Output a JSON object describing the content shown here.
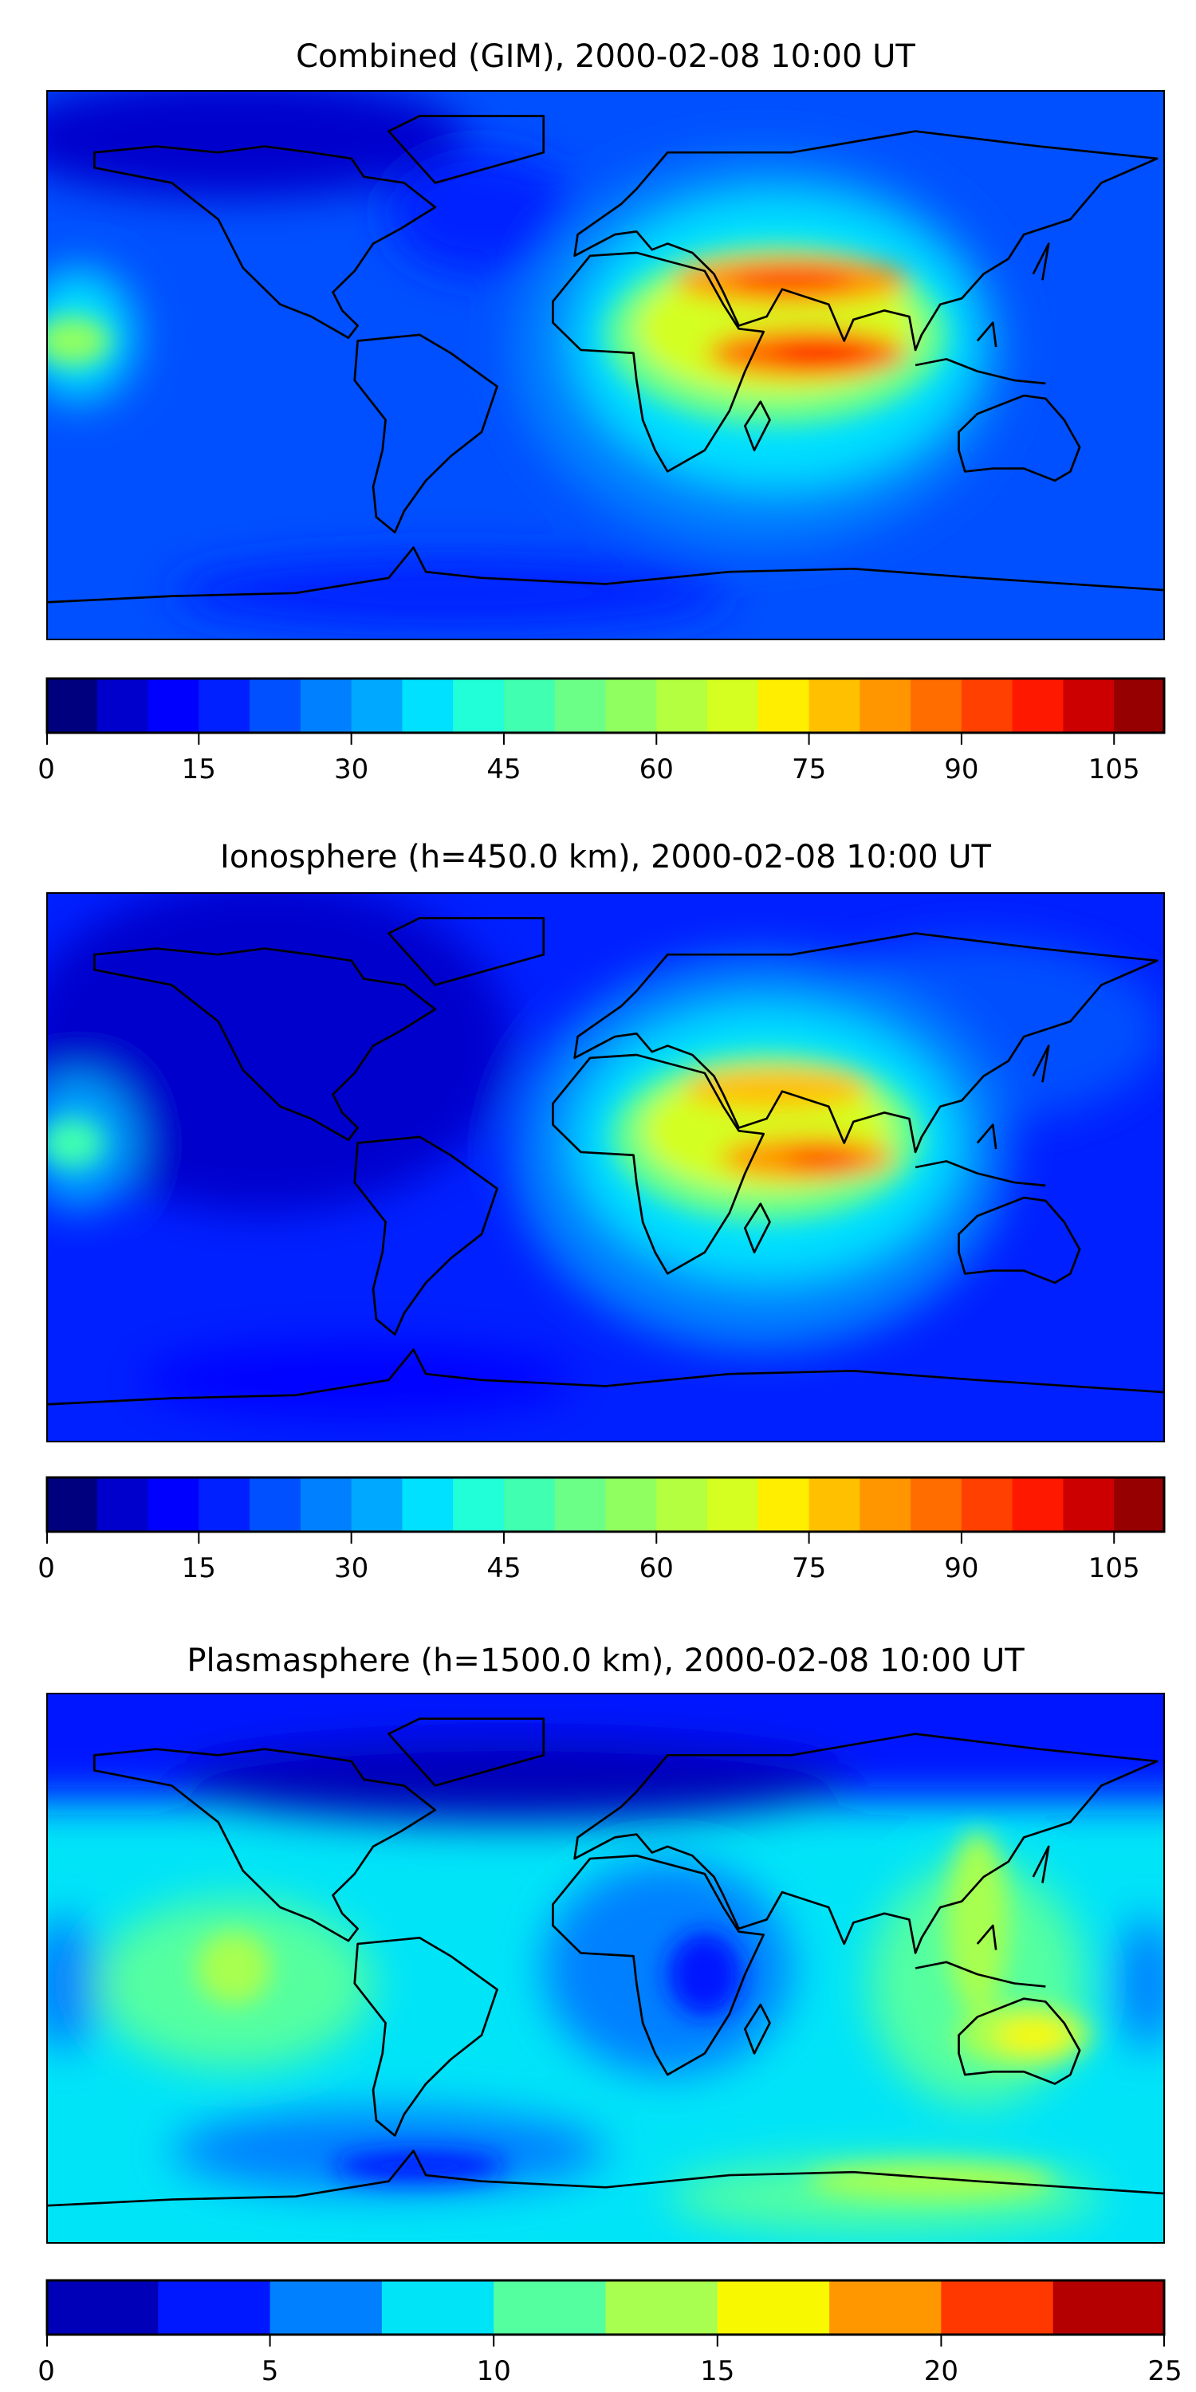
{
  "chart_data": [
    {
      "type": "heatmap",
      "title": "Combined (GIM), 2000-02-08 10:00 UT",
      "projection": "plate carree world map with coastlines",
      "colorbar": {
        "range": [
          0,
          110
        ],
        "step": 5,
        "ticks": [
          "0",
          "15",
          "30",
          "45",
          "60",
          "75",
          "90",
          "105"
        ],
        "tick_values": [
          0,
          15,
          30,
          45,
          60,
          75,
          90,
          105
        ],
        "colors": [
          "#00007f",
          "#0000cc",
          "#0000ff",
          "#0020ff",
          "#0050ff",
          "#0080ff",
          "#00a8ff",
          "#00e0ff",
          "#20ffd8",
          "#40ffb0",
          "#6cff88",
          "#90ff60",
          "#b4ff40",
          "#d4ff20",
          "#ffee00",
          "#ffc000",
          "#ff9600",
          "#ff6c00",
          "#ff4000",
          "#ff1800",
          "#cc0000",
          "#960000"
        ]
      },
      "features": {
        "maximum_region": "Africa / Arabia / South Asia equatorial band",
        "maximum_level": 100,
        "background_level": 20
      }
    },
    {
      "type": "heatmap",
      "title": "Ionosphere  (h=450.0 km), 2000-02-08 10:00 UT",
      "projection": "plate carree world map with coastlines",
      "colorbar": {
        "range": [
          0,
          110
        ],
        "step": 5,
        "ticks": [
          "0",
          "15",
          "30",
          "45",
          "60",
          "75",
          "90",
          "105"
        ],
        "tick_values": [
          0,
          15,
          30,
          45,
          60,
          75,
          90,
          105
        ],
        "colors": [
          "#00007f",
          "#0000cc",
          "#0000ff",
          "#0020ff",
          "#0050ff",
          "#0080ff",
          "#00a8ff",
          "#00e0ff",
          "#20ffd8",
          "#40ffb0",
          "#6cff88",
          "#90ff60",
          "#b4ff40",
          "#d4ff20",
          "#ffee00",
          "#ffc000",
          "#ff9600",
          "#ff6c00",
          "#ff4000",
          "#ff1800",
          "#cc0000",
          "#960000"
        ]
      },
      "features": {
        "maximum_region": "Africa / Arabia / South Asia equatorial band",
        "maximum_level": 90,
        "background_level": 10
      }
    },
    {
      "type": "heatmap",
      "title": "Plasmasphere (h=1500.0 km), 2000-02-08 10:00 UT",
      "projection": "plate carree world map with coastlines",
      "colorbar": {
        "range": [
          0,
          25
        ],
        "step": 2.5,
        "ticks": [
          "0",
          "5",
          "10",
          "15",
          "20",
          "25"
        ],
        "tick_values": [
          0,
          5,
          10,
          15,
          20,
          25
        ],
        "colors": [
          "#0000b8",
          "#0018ff",
          "#0080ff",
          "#00e4f8",
          "#54ffa0",
          "#a8ff50",
          "#f8f800",
          "#ff9800",
          "#ff3800",
          "#b40000"
        ]
      },
      "features": {
        "maximum_region": "Australia",
        "maximum_level": 17.5,
        "background_level": 7.5
      }
    }
  ]
}
